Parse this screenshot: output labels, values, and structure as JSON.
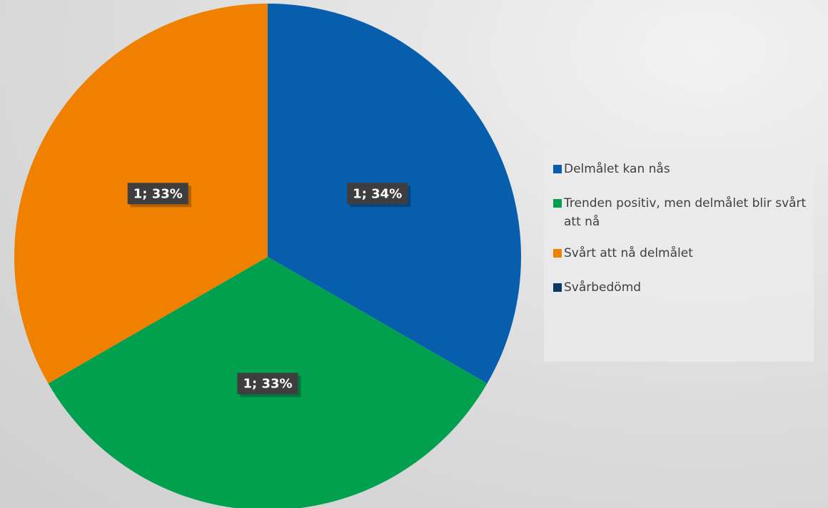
{
  "chart_data": {
    "type": "pie",
    "categories": [
      "Delmålet kan  nås",
      "Trenden positiv, men delmålet blir svårt att nå",
      "Svårt att nå delmålet",
      "Svårbedömd"
    ],
    "values": [
      1,
      1,
      1,
      0
    ],
    "value_labels": [
      "1; 34%",
      "1; 33%",
      "1; 33%",
      null
    ],
    "colors": [
      "#065ead",
      "#00a04f",
      "#f08000",
      "#0c3866"
    ],
    "legend": "right"
  }
}
